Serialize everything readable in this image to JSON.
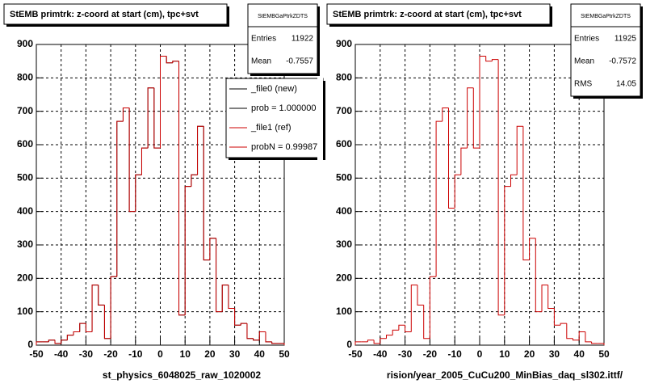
{
  "chart_data": [
    {
      "type": "histogram",
      "title": "StEMB primtrk: z-coord at start (cm), tpc+svt",
      "xlabel": "st_physics_6048025_raw_1020002",
      "bins": [
        -50,
        -47.5,
        -45,
        -42.5,
        -40,
        -37.5,
        -35,
        -32.5,
        -30,
        -27.5,
        -25,
        -22.5,
        -20,
        -17.5,
        -15,
        -12.5,
        -10,
        -7.5,
        -5,
        -2.5,
        0,
        2.5,
        5,
        7.5,
        10,
        12.5,
        15,
        17.5,
        20,
        22.5,
        25,
        27.5,
        30,
        32.5,
        35,
        37.5,
        40,
        42.5,
        45,
        47.5,
        50
      ],
      "series": [
        {
          "name": "_file0 (new)",
          "note": "prob = 1.000000",
          "color": "#000000",
          "values": [
            10,
            10,
            15,
            5,
            15,
            30,
            40,
            65,
            40,
            180,
            120,
            20,
            205,
            670,
            710,
            400,
            510,
            590,
            770,
            590,
            865,
            845,
            850,
            90,
            475,
            510,
            655,
            255,
            320,
            100,
            180,
            110,
            60,
            65,
            20,
            15,
            40,
            10,
            5,
            5
          ]
        },
        {
          "name": "_file1 (ref)",
          "note": "probN = 0.99987",
          "color": "#cc0000",
          "values": [
            10,
            10,
            15,
            5,
            15,
            30,
            40,
            65,
            40,
            180,
            120,
            20,
            205,
            670,
            710,
            400,
            510,
            590,
            770,
            590,
            865,
            845,
            850,
            90,
            475,
            510,
            655,
            255,
            320,
            100,
            180,
            110,
            60,
            65,
            20,
            15,
            40,
            10,
            5,
            5
          ]
        }
      ],
      "stats": {
        "title": "StEMBGaPtrkZDTS",
        "rows": [
          [
            "Entries",
            11922
          ],
          [
            "Mean",
            -0.7557
          ]
        ]
      },
      "xlim": [
        -50,
        50
      ],
      "xticks": [
        -50,
        -40,
        -30,
        -20,
        -10,
        0,
        10,
        20,
        30,
        40,
        50
      ],
      "ylim": [
        0,
        900
      ],
      "yticks": [
        0,
        100,
        200,
        300,
        400,
        500,
        600,
        700,
        800,
        900
      ],
      "grid": true
    },
    {
      "type": "histogram",
      "title": "StEMB primtrk: z-coord at start (cm), tpc+svt",
      "xlabel": "rision/year_2005_CuCu200_MinBias_daq_sl302.ittf/",
      "bins": [
        -50,
        -47.5,
        -45,
        -42.5,
        -40,
        -37.5,
        -35,
        -32.5,
        -30,
        -27.5,
        -25,
        -22.5,
        -20,
        -17.5,
        -15,
        -12.5,
        -10,
        -7.5,
        -5,
        -2.5,
        0,
        2.5,
        5,
        7.5,
        10,
        12.5,
        15,
        17.5,
        20,
        22.5,
        25,
        27.5,
        30,
        32.5,
        35,
        37.5,
        40,
        42.5,
        45,
        47.5,
        50
      ],
      "series": [
        {
          "color": "#cc0000",
          "values": [
            10,
            10,
            15,
            5,
            20,
            30,
            45,
            60,
            40,
            180,
            120,
            20,
            205,
            670,
            710,
            410,
            510,
            590,
            770,
            590,
            865,
            850,
            855,
            90,
            475,
            510,
            655,
            255,
            320,
            100,
            180,
            110,
            60,
            65,
            20,
            15,
            40,
            10,
            5,
            5
          ]
        }
      ],
      "stats": {
        "title": "StEMBGaPtrkZDTS",
        "rows": [
          [
            "Entries",
            11925
          ],
          [
            "Mean",
            -0.7572
          ],
          [
            "RMS",
            14.05
          ]
        ]
      },
      "xlim": [
        -50,
        50
      ],
      "xticks": [
        -50,
        -40,
        -30,
        -20,
        -10,
        0,
        10,
        20,
        30,
        40,
        50
      ],
      "ylim": [
        0,
        900
      ],
      "yticks": [
        0,
        100,
        200,
        300,
        400,
        500,
        600,
        700,
        800,
        900
      ],
      "grid": true
    }
  ]
}
